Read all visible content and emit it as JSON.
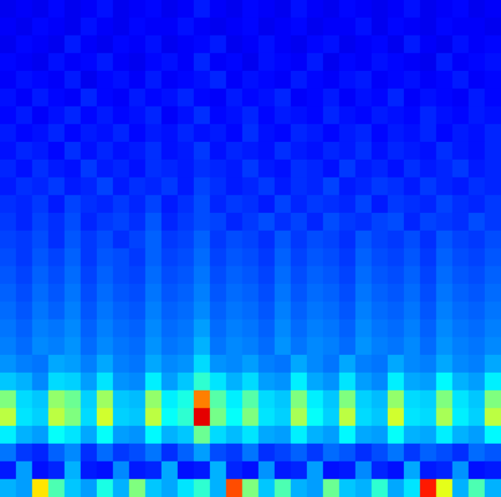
{
  "chart_data": {
    "type": "heatmap",
    "tick_labels": false,
    "color_range": [
      0,
      10
    ],
    "cells": [
      [
        1.1,
        1.2,
        1.1,
        1.3,
        1.1,
        1.2,
        1.4,
        1.1,
        1.2,
        1.3,
        1.1,
        1.2,
        1.5,
        1.2,
        1.1,
        1.3,
        1.2,
        1.1,
        1.4,
        1.2,
        1.1,
        1.3,
        1.2,
        1.1,
        1.2,
        1.4,
        1.1,
        1.2,
        1.3,
        1.1,
        1.2
      ],
      [
        1.2,
        1.1,
        1.3,
        1.2,
        1.1,
        1.4,
        1.2,
        1.1,
        1.3,
        1.2,
        1.2,
        1.4,
        1.2,
        1.1,
        1.2,
        1.3,
        1.1,
        1.2,
        1.3,
        1.1,
        1.2,
        1.2,
        1.4,
        1.1,
        1.3,
        1.2,
        1.1,
        1.3,
        1.2,
        1.2,
        1.1
      ],
      [
        1.1,
        1.3,
        1.2,
        1.1,
        1.5,
        1.2,
        1.1,
        1.3,
        1.2,
        1.4,
        1.1,
        1.2,
        1.3,
        1.5,
        1.1,
        1.2,
        1.4,
        1.2,
        1.1,
        1.3,
        1.4,
        1.1,
        1.2,
        1.3,
        1.1,
        1.5,
        1.2,
        1.1,
        1.4,
        1.2,
        1.3
      ],
      [
        1.3,
        1.2,
        1.1,
        1.4,
        1.2,
        1.3,
        1.5,
        1.2,
        1.1,
        1.3,
        1.4,
        1.2,
        1.6,
        1.2,
        1.3,
        1.1,
        1.4,
        1.3,
        1.2,
        1.5,
        1.1,
        1.3,
        1.2,
        1.4,
        1.3,
        1.2,
        1.1,
        1.5,
        1.2,
        1.3,
        1.4
      ],
      [
        1.2,
        1.4,
        1.3,
        1.2,
        1.5,
        1.1,
        1.3,
        1.4,
        1.2,
        1.5,
        1.2,
        1.3,
        1.4,
        1.6,
        1.2,
        1.4,
        1.3,
        1.2,
        1.5,
        1.3,
        1.2,
        1.4,
        1.5,
        1.2,
        1.3,
        1.4,
        1.2,
        1.3,
        1.5,
        1.2,
        1.3
      ],
      [
        1.4,
        1.2,
        1.5,
        1.3,
        1.2,
        1.6,
        1.3,
        1.2,
        1.5,
        1.3,
        1.4,
        1.6,
        1.3,
        1.2,
        1.5,
        1.3,
        1.4,
        1.6,
        1.2,
        1.3,
        1.5,
        1.2,
        1.4,
        1.3,
        1.6,
        1.2,
        1.4,
        1.3,
        1.2,
        1.5,
        1.3
      ],
      [
        1.3,
        1.5,
        1.2,
        1.4,
        1.6,
        1.3,
        1.5,
        1.3,
        1.4,
        1.6,
        1.2,
        1.4,
        1.7,
        1.3,
        1.4,
        1.6,
        1.3,
        1.5,
        1.4,
        1.3,
        1.6,
        1.4,
        1.3,
        1.5,
        1.4,
        1.3,
        1.6,
        1.4,
        1.3,
        1.5,
        1.4
      ],
      [
        1.5,
        1.3,
        1.4,
        1.6,
        1.3,
        1.5,
        1.4,
        1.6,
        1.3,
        1.5,
        1.4,
        1.6,
        1.4,
        1.5,
        1.3,
        1.7,
        1.4,
        1.3,
        1.6,
        1.5,
        1.3,
        1.5,
        1.6,
        1.3,
        1.5,
        1.4,
        1.6,
        1.3,
        1.5,
        1.4,
        1.6
      ],
      [
        1.4,
        1.6,
        1.5,
        1.3,
        1.7,
        1.4,
        1.6,
        1.4,
        1.5,
        1.7,
        1.4,
        1.5,
        1.8,
        1.4,
        1.6,
        1.5,
        1.4,
        1.7,
        1.5,
        1.4,
        1.6,
        1.5,
        1.7,
        1.4,
        1.6,
        1.5,
        1.4,
        1.7,
        1.5,
        1.4,
        1.6
      ],
      [
        1.6,
        1.4,
        1.7,
        1.5,
        1.4,
        1.8,
        1.5,
        1.6,
        1.4,
        1.7,
        1.6,
        1.5,
        1.7,
        1.6,
        1.5,
        1.8,
        1.5,
        1.4,
        1.7,
        1.6,
        1.4,
        1.8,
        1.5,
        1.6,
        1.4,
        1.7,
        1.5,
        1.6,
        1.8,
        1.5,
        1.6
      ],
      [
        1.5,
        1.7,
        1.6,
        1.8,
        1.5,
        1.6,
        1.9,
        1.5,
        1.7,
        1.6,
        1.8,
        1.5,
        1.9,
        1.7,
        1.5,
        1.6,
        1.8,
        1.5,
        1.7,
        1.6,
        1.9,
        1.5,
        1.6,
        1.8,
        1.7,
        1.5,
        1.8,
        1.6,
        1.5,
        1.7,
        1.6
      ],
      [
        1.7,
        1.6,
        1.8,
        1.5,
        1.9,
        1.7,
        1.6,
        1.8,
        1.6,
        1.9,
        1.5,
        1.7,
        2.0,
        1.6,
        1.8,
        1.7,
        1.5,
        1.9,
        1.6,
        1.8,
        1.7,
        1.6,
        1.9,
        1.5,
        1.8,
        1.7,
        1.6,
        1.9,
        1.7,
        1.6,
        1.8
      ],
      [
        1.8,
        1.6,
        1.9,
        1.7,
        2.0,
        1.6,
        1.8,
        1.9,
        1.7,
        2.1,
        1.6,
        1.8,
        2.0,
        1.9,
        1.6,
        1.8,
        2.0,
        1.7,
        1.9,
        1.6,
        2.0,
        1.8,
        1.7,
        1.9,
        2.0,
        1.6,
        1.9,
        1.8,
        1.7,
        2.0,
        1.8
      ],
      [
        1.9,
        1.8,
        2.0,
        1.7,
        2.1,
        1.8,
        2.0,
        1.7,
        1.9,
        2.2,
        1.8,
        1.9,
        2.2,
        1.8,
        2.0,
        1.9,
        1.7,
        2.1,
        1.8,
        2.0,
        1.9,
        1.7,
        2.1,
        1.9,
        1.8,
        2.0,
        1.7,
        2.1,
        1.9,
        1.8,
        2.0
      ],
      [
        2.0,
        1.8,
        2.1,
        1.9,
        2.2,
        1.8,
        2.1,
        2.0,
        1.8,
        2.2,
        1.9,
        2.0,
        2.3,
        1.9,
        2.1,
        2.0,
        1.8,
        2.2,
        1.9,
        2.1,
        2.0,
        1.8,
        2.2,
        2.0,
        1.9,
        2.1,
        1.8,
        2.2,
        2.0,
        1.9,
        2.1
      ],
      [
        2.1,
        1.9,
        2.2,
        2.0,
        2.3,
        1.9,
        2.2,
        2.0,
        1.9,
        2.3,
        2.0,
        2.1,
        2.4,
        2.0,
        2.2,
        2.1,
        1.9,
        2.3,
        2.0,
        2.2,
        2.1,
        1.9,
        2.3,
        2.1,
        2.0,
        2.2,
        1.9,
        2.3,
        2.1,
        2.0,
        2.2
      ],
      [
        2.2,
        2.0,
        2.3,
        2.1,
        2.4,
        2.0,
        2.3,
        2.1,
        2.0,
        2.4,
        2.1,
        2.2,
        2.5,
        2.1,
        2.3,
        2.2,
        2.0,
        2.4,
        2.1,
        2.3,
        2.2,
        2.0,
        2.4,
        2.2,
        2.1,
        2.3,
        2.0,
        2.4,
        2.2,
        2.1,
        2.3
      ],
      [
        2.3,
        2.1,
        2.4,
        2.2,
        2.5,
        2.1,
        2.4,
        2.2,
        2.1,
        2.5,
        2.2,
        2.3,
        2.6,
        2.2,
        2.4,
        2.3,
        2.1,
        2.5,
        2.2,
        2.4,
        2.3,
        2.1,
        2.5,
        2.3,
        2.2,
        2.4,
        2.1,
        2.5,
        2.3,
        2.2,
        2.4
      ],
      [
        2.4,
        2.2,
        2.5,
        2.4,
        2.6,
        2.2,
        2.5,
        2.3,
        2.2,
        2.6,
        2.3,
        2.4,
        2.8,
        2.3,
        2.5,
        2.4,
        2.2,
        2.6,
        2.3,
        2.5,
        2.4,
        2.2,
        2.6,
        2.4,
        2.3,
        2.5,
        2.2,
        2.6,
        2.4,
        2.3,
        2.5
      ],
      [
        2.5,
        2.3,
        2.6,
        2.5,
        2.7,
        2.3,
        2.6,
        2.4,
        2.3,
        2.7,
        2.4,
        2.5,
        3.0,
        2.4,
        2.6,
        2.5,
        2.3,
        2.7,
        2.4,
        2.6,
        2.5,
        2.3,
        2.7,
        2.5,
        2.4,
        2.6,
        2.3,
        2.7,
        2.5,
        2.4,
        2.6
      ],
      [
        2.7,
        2.5,
        2.4,
        2.9,
        2.8,
        2.5,
        2.9,
        2.5,
        2.4,
        2.9,
        2.6,
        2.7,
        3.4,
        2.7,
        2.6,
        2.8,
        2.5,
        2.4,
        2.9,
        2.6,
        2.4,
        2.9,
        2.5,
        2.4,
        2.9,
        2.6,
        2.5,
        2.9,
        2.6,
        2.5,
        2.9
      ],
      [
        3.2,
        3.0,
        2.6,
        3.4,
        3.3,
        2.8,
        3.5,
        2.7,
        2.6,
        3.6,
        2.8,
        3.2,
        4.2,
        3.5,
        3.0,
        3.4,
        2.8,
        2.7,
        3.6,
        2.9,
        2.7,
        3.5,
        2.8,
        2.6,
        3.6,
        2.9,
        2.8,
        3.7,
        3.0,
        2.8,
        3.6
      ],
      [
        5.0,
        3.4,
        3.2,
        5.2,
        4.8,
        3.3,
        5.3,
        3.2,
        3.1,
        5.2,
        3.6,
        4.0,
        7.5,
        4.6,
        3.6,
        4.6,
        3.4,
        3.2,
        5.0,
        3.6,
        3.2,
        5.0,
        3.3,
        3.1,
        5.2,
        3.4,
        3.3,
        5.0,
        3.5,
        3.2,
        5.0
      ],
      [
        5.6,
        3.5,
        3.3,
        5.6,
        5.0,
        3.4,
        5.8,
        3.3,
        3.2,
        5.6,
        3.8,
        4.2,
        9.0,
        4.9,
        3.8,
        5.0,
        3.5,
        3.3,
        5.4,
        3.8,
        3.3,
        5.6,
        3.4,
        3.2,
        5.8,
        3.5,
        3.4,
        5.4,
        3.6,
        3.3,
        5.6
      ],
      [
        3.6,
        3.0,
        2.8,
        3.8,
        3.5,
        2.9,
        3.8,
        2.8,
        2.7,
        3.7,
        3.0,
        3.2,
        4.8,
        3.4,
        3.1,
        3.5,
        2.9,
        2.8,
        3.6,
        3.0,
        2.8,
        3.7,
        2.9,
        2.8,
        3.8,
        3.0,
        2.9,
        3.6,
        3.0,
        2.8,
        3.7
      ],
      [
        2.4,
        1.8,
        1.6,
        2.2,
        2.6,
        1.7,
        2.3,
        1.8,
        2.0,
        2.4,
        1.7,
        2.2,
        2.8,
        2.0,
        1.8,
        2.4,
        1.7,
        1.9,
        2.2,
        1.8,
        2.3,
        2.1,
        1.7,
        2.0,
        2.4,
        1.8,
        2.2,
        2.0,
        1.7,
        2.3,
        2.1
      ],
      [
        1.5,
        2.8,
        1.4,
        1.6,
        3.0,
        1.5,
        1.4,
        2.6,
        1.5,
        1.6,
        2.9,
        1.4,
        1.5,
        3.0,
        1.6,
        1.4,
        2.7,
        1.5,
        1.6,
        2.8,
        1.4,
        1.5,
        2.6,
        1.6,
        1.4,
        2.9,
        1.5,
        1.6,
        2.7,
        1.4,
        1.5
      ],
      [
        3.0,
        2.8,
        6.5,
        4.5,
        3.2,
        2.8,
        4.0,
        3.0,
        5.0,
        3.2,
        2.9,
        3.5,
        4.2,
        3.0,
        8.0,
        5.0,
        3.2,
        4.5,
        3.0,
        2.8,
        4.8,
        3.2,
        3.0,
        4.2,
        2.9,
        3.5,
        8.5,
        6.0,
        3.0,
        4.5,
        3.0
      ]
    ]
  }
}
